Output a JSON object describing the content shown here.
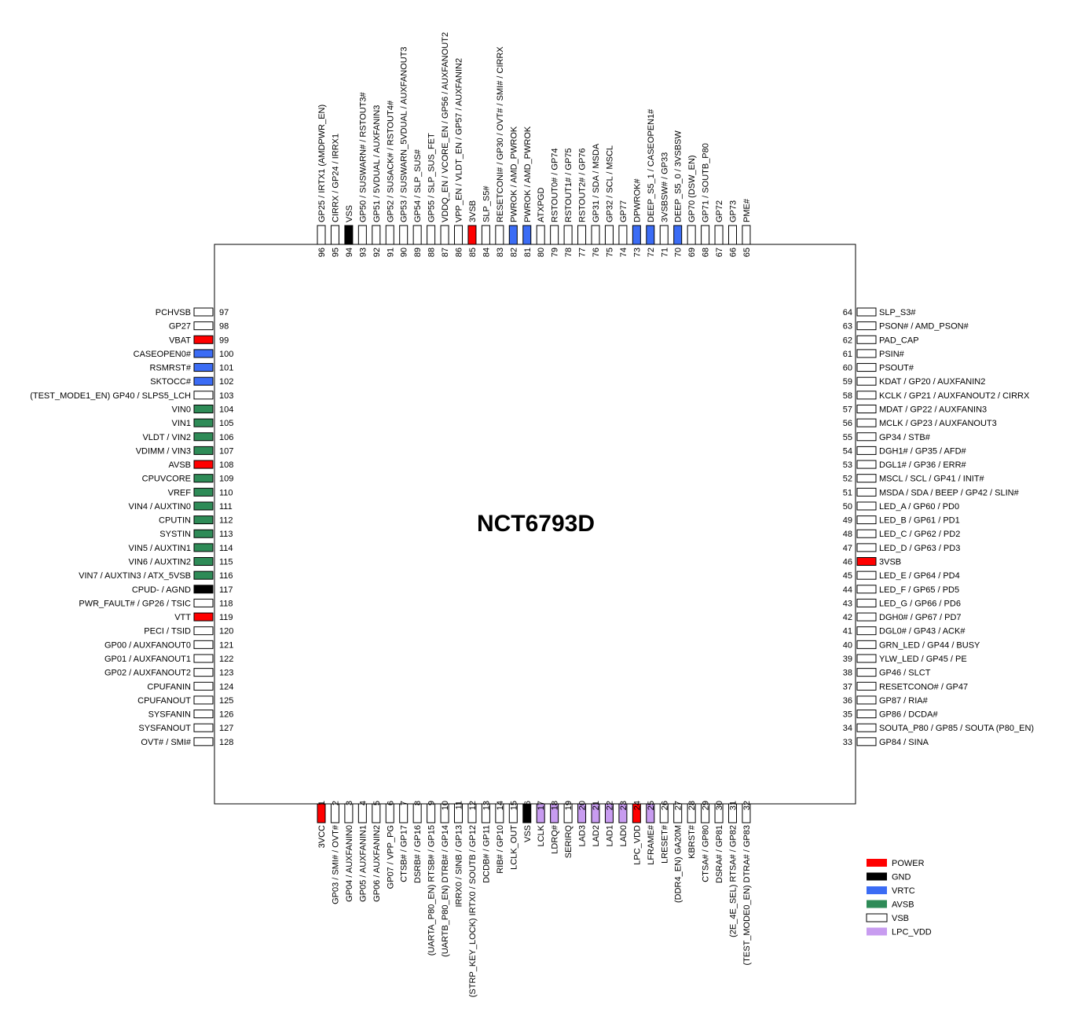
{
  "chip_name": "NCT6793D",
  "colors": {
    "POWER": "#ff0000",
    "GND": "#000000",
    "VRTC": "#3b6cf5",
    "AVSB": "#2e8b57",
    "VSB": "#ffffff",
    "LPC_VDD": "#c89cf0"
  },
  "legend": [
    {
      "type": "POWER",
      "label": "POWER"
    },
    {
      "type": "GND",
      "label": "GND"
    },
    {
      "type": "VRTC",
      "label": "VRTC"
    },
    {
      "type": "AVSB",
      "label": "AVSB"
    },
    {
      "type": "VSB",
      "label": "VSB"
    },
    {
      "type": "LPC_VDD",
      "label": "LPC_VDD"
    }
  ],
  "pins_bottom": [
    {
      "num": "1",
      "name": "3VCC",
      "type": "POWER"
    },
    {
      "num": "2",
      "name": "GP03 / SMI# / OVT#",
      "type": "VSB"
    },
    {
      "num": "3",
      "name": "GP04 / AUXFANIN0",
      "type": "VSB"
    },
    {
      "num": "4",
      "name": "GP05 / AUXFANIN1",
      "type": "VSB"
    },
    {
      "num": "5",
      "name": "GP06 / AUXFANIN2",
      "type": "VSB"
    },
    {
      "num": "6",
      "name": "GP07 / VPP_PG",
      "type": "VSB"
    },
    {
      "num": "7",
      "name": "CTSB# / GP17",
      "type": "VSB"
    },
    {
      "num": "8",
      "name": "DSRB# / GP16",
      "type": "VSB"
    },
    {
      "num": "9",
      "name": "(UARTA_P80_EN) RTSB# / GP15",
      "type": "VSB"
    },
    {
      "num": "10",
      "name": "(UARTB_P80_EN) DTRB# / GP14",
      "type": "VSB"
    },
    {
      "num": "11",
      "name": "IRRX0 / SINB / GP13",
      "type": "VSB"
    },
    {
      "num": "12",
      "name": "(STRP_KEY_LOCK) IRTX0 / SOUTB / GP12",
      "type": "VSB"
    },
    {
      "num": "13",
      "name": "DCDB# / GP11",
      "type": "VSB"
    },
    {
      "num": "14",
      "name": "RIB# / GP10",
      "type": "VSB"
    },
    {
      "num": "15",
      "name": "LCLK_OUT",
      "type": "VSB"
    },
    {
      "num": "16",
      "name": "VSS",
      "type": "GND"
    },
    {
      "num": "17",
      "name": "LCLK",
      "type": "LPC_VDD"
    },
    {
      "num": "18",
      "name": "LDRQ#",
      "type": "LPC_VDD"
    },
    {
      "num": "19",
      "name": "SERIRQ",
      "type": "VSB"
    },
    {
      "num": "20",
      "name": "LAD3",
      "type": "LPC_VDD"
    },
    {
      "num": "21",
      "name": "LAD2",
      "type": "LPC_VDD"
    },
    {
      "num": "22",
      "name": "LAD1",
      "type": "LPC_VDD"
    },
    {
      "num": "23",
      "name": "LAD0",
      "type": "LPC_VDD"
    },
    {
      "num": "24",
      "name": "LPC_VDD",
      "type": "POWER"
    },
    {
      "num": "25",
      "name": "LFRAME#",
      "type": "LPC_VDD"
    },
    {
      "num": "26",
      "name": "LRESET#",
      "type": "VSB"
    },
    {
      "num": "27",
      "name": "(DDR4_EN) GA20M",
      "type": "VSB"
    },
    {
      "num": "28",
      "name": "KBRST#",
      "type": "VSB"
    },
    {
      "num": "29",
      "name": "CTSA# / GP80",
      "type": "VSB"
    },
    {
      "num": "30",
      "name": "DSRA# / GP81",
      "type": "VSB"
    },
    {
      "num": "31",
      "name": "(2E_4E_SEL) RTSA# / GP82",
      "type": "VSB"
    },
    {
      "num": "32",
      "name": "(TEST_MODE0_EN) DTRA# / GP83",
      "type": "VSB"
    }
  ],
  "pins_right": [
    {
      "num": "33",
      "name": "GP84 / SINA",
      "type": "VSB"
    },
    {
      "num": "34",
      "name": "SOUTA_P80 / GP85 / SOUTA (P80_EN)",
      "type": "VSB"
    },
    {
      "num": "35",
      "name": "GP86 / DCDA#",
      "type": "VSB"
    },
    {
      "num": "36",
      "name": "GP87 / RIA#",
      "type": "VSB"
    },
    {
      "num": "37",
      "name": "RESETCONO# / GP47",
      "type": "VSB"
    },
    {
      "num": "38",
      "name": "GP46 / SLCT",
      "type": "VSB"
    },
    {
      "num": "39",
      "name": "YLW_LED / GP45 / PE",
      "type": "VSB"
    },
    {
      "num": "40",
      "name": "GRN_LED / GP44 / BUSY",
      "type": "VSB"
    },
    {
      "num": "41",
      "name": "DGL0# / GP43 / ACK#",
      "type": "VSB"
    },
    {
      "num": "42",
      "name": "DGH0# / GP67 / PD7",
      "type": "VSB"
    },
    {
      "num": "43",
      "name": "LED_G / GP66 / PD6",
      "type": "VSB"
    },
    {
      "num": "44",
      "name": "LED_F / GP65 / PD5",
      "type": "VSB"
    },
    {
      "num": "45",
      "name": "LED_E / GP64 / PD4",
      "type": "VSB"
    },
    {
      "num": "46",
      "name": "3VSB",
      "type": "POWER"
    },
    {
      "num": "47",
      "name": "LED_D / GP63 / PD3",
      "type": "VSB"
    },
    {
      "num": "48",
      "name": "LED_C / GP62 / PD2",
      "type": "VSB"
    },
    {
      "num": "49",
      "name": "LED_B / GP61 / PD1",
      "type": "VSB"
    },
    {
      "num": "50",
      "name": "LED_A / GP60 / PD0",
      "type": "VSB"
    },
    {
      "num": "51",
      "name": "MSDA / SDA / BEEP / GP42 / SLIN#",
      "type": "VSB"
    },
    {
      "num": "52",
      "name": "MSCL / SCL / GP41 / INIT#",
      "type": "VSB"
    },
    {
      "num": "53",
      "name": "DGL1# / GP36 / ERR#",
      "type": "VSB"
    },
    {
      "num": "54",
      "name": "DGH1# / GP35 / AFD#",
      "type": "VSB"
    },
    {
      "num": "55",
      "name": "GP34 / STB#",
      "type": "VSB"
    },
    {
      "num": "56",
      "name": "MCLK / GP23 / AUXFANOUT3",
      "type": "VSB"
    },
    {
      "num": "57",
      "name": "MDAT / GP22 / AUXFANIN3",
      "type": "VSB"
    },
    {
      "num": "58",
      "name": "KCLK / GP21 / AUXFANOUT2 / CIRRX",
      "type": "VSB"
    },
    {
      "num": "59",
      "name": "KDAT / GP20 / AUXFANIN2",
      "type": "VSB"
    },
    {
      "num": "60",
      "name": "PSOUT#",
      "type": "VSB"
    },
    {
      "num": "61",
      "name": "PSIN#",
      "type": "VSB"
    },
    {
      "num": "62",
      "name": "PAD_CAP",
      "type": "VSB"
    },
    {
      "num": "63",
      "name": "PSON# / AMD_PSON#",
      "type": "VSB"
    },
    {
      "num": "64",
      "name": "SLP_S3#",
      "type": "VSB"
    }
  ],
  "pins_top": [
    {
      "num": "65",
      "name": "PME#",
      "type": "VSB"
    },
    {
      "num": "66",
      "name": "GP73",
      "type": "VSB"
    },
    {
      "num": "67",
      "name": "GP72",
      "type": "VSB"
    },
    {
      "num": "68",
      "name": "GP71 / SOUTB_P80",
      "type": "VSB"
    },
    {
      "num": "69",
      "name": "GP70 (DSW_EN)",
      "type": "VSB"
    },
    {
      "num": "70",
      "name": "DEEP_S5_0 / 3VSBSW",
      "type": "VRTC"
    },
    {
      "num": "71",
      "name": "3VSBSW# / GP33",
      "type": "VSB"
    },
    {
      "num": "72",
      "name": "DEEP_S5_1 / CASEOPEN1#",
      "type": "VRTC"
    },
    {
      "num": "73",
      "name": "DPWROK#",
      "type": "VRTC"
    },
    {
      "num": "74",
      "name": "GP77",
      "type": "VSB"
    },
    {
      "num": "75",
      "name": "GP32 / SCL / MSCL",
      "type": "VSB"
    },
    {
      "num": "76",
      "name": "GP31 / SDA / MSDA",
      "type": "VSB"
    },
    {
      "num": "77",
      "name": "RSTOUT2# / GP76",
      "type": "VSB"
    },
    {
      "num": "78",
      "name": "RSTOUT1# / GP75",
      "type": "VSB"
    },
    {
      "num": "79",
      "name": "RSTOUT0# / GP74",
      "type": "VSB"
    },
    {
      "num": "80",
      "name": "ATXPGD",
      "type": "VSB"
    },
    {
      "num": "81",
      "name": "PWROK / AMD_PWROK",
      "type": "VRTC"
    },
    {
      "num": "82",
      "name": "PWROK / AMD_PWROK",
      "type": "VRTC"
    },
    {
      "num": "83",
      "name": "RESETCONI# / GP30 / OVT# / SMI# / CIRRX",
      "type": "VSB"
    },
    {
      "num": "84",
      "name": "SLP_S5#",
      "type": "VSB"
    },
    {
      "num": "85",
      "name": "3VSB",
      "type": "POWER"
    },
    {
      "num": "86",
      "name": "VPP_EN / VLDT_EN / GP57 / AUXFANIN2",
      "type": "VSB"
    },
    {
      "num": "87",
      "name": "VDDQ_EN / VCORE_EN / GP56 / AUXFANOUT2",
      "type": "VSB"
    },
    {
      "num": "88",
      "name": "GP55 / SLP_SUS_FET",
      "type": "VSB"
    },
    {
      "num": "89",
      "name": "GP54 / SLP_SUS#",
      "type": "VSB"
    },
    {
      "num": "90",
      "name": "GP53 / SUSWARN_5VDUAL / AUXFANOUT3",
      "type": "VSB"
    },
    {
      "num": "91",
      "name": "GP52 / SUSACK# / RSTOUT4#",
      "type": "VSB"
    },
    {
      "num": "92",
      "name": "GP51 / 5VDUAL / AUXFANIN3",
      "type": "VSB"
    },
    {
      "num": "93",
      "name": "GP50 / SUSWARN# / RSTOUT3#",
      "type": "VSB"
    },
    {
      "num": "94",
      "name": "VSS",
      "type": "GND"
    },
    {
      "num": "95",
      "name": "CIRRX / GP24 / IRRX1",
      "type": "VSB"
    },
    {
      "num": "96",
      "name": "GP25 / IRTX1 (AMDPWR_EN)",
      "type": "VSB"
    }
  ],
  "pins_left": [
    {
      "num": "97",
      "name": "PCHVSB",
      "type": "VSB"
    },
    {
      "num": "98",
      "name": "GP27",
      "type": "VSB"
    },
    {
      "num": "99",
      "name": "VBAT",
      "type": "POWER"
    },
    {
      "num": "100",
      "name": "CASEOPEN0#",
      "type": "VRTC"
    },
    {
      "num": "101",
      "name": "RSMRST#",
      "type": "VRTC"
    },
    {
      "num": "102",
      "name": "SKTOCC#",
      "type": "VRTC"
    },
    {
      "num": "103",
      "name": "(TEST_MODE1_EN) GP40 / SLPS5_LCH",
      "type": "VSB"
    },
    {
      "num": "104",
      "name": "VIN0",
      "type": "AVSB"
    },
    {
      "num": "105",
      "name": "VIN1",
      "type": "AVSB"
    },
    {
      "num": "106",
      "name": "VLDT / VIN2",
      "type": "AVSB"
    },
    {
      "num": "107",
      "name": "VDIMM / VIN3",
      "type": "AVSB"
    },
    {
      "num": "108",
      "name": "AVSB",
      "type": "POWER"
    },
    {
      "num": "109",
      "name": "CPUVCORE",
      "type": "AVSB"
    },
    {
      "num": "110",
      "name": "VREF",
      "type": "AVSB"
    },
    {
      "num": "111",
      "name": "VIN4 / AUXTIN0",
      "type": "AVSB"
    },
    {
      "num": "112",
      "name": "CPUTIN",
      "type": "AVSB"
    },
    {
      "num": "113",
      "name": "SYSTIN",
      "type": "AVSB"
    },
    {
      "num": "114",
      "name": "VIN5 / AUXTIN1",
      "type": "AVSB"
    },
    {
      "num": "115",
      "name": "VIN6 / AUXTIN2",
      "type": "AVSB"
    },
    {
      "num": "116",
      "name": "VIN7 / AUXTIN3 / ATX_5VSB",
      "type": "AVSB"
    },
    {
      "num": "117",
      "name": "CPUD- / AGND",
      "type": "GND"
    },
    {
      "num": "118",
      "name": "PWR_FAULT# / GP26 / TSIC",
      "type": "VSB"
    },
    {
      "num": "119",
      "name": "VTT",
      "type": "POWER"
    },
    {
      "num": "120",
      "name": "PECI / TSID",
      "type": "VSB"
    },
    {
      "num": "121",
      "name": "GP00 / AUXFANOUT0",
      "type": "VSB"
    },
    {
      "num": "122",
      "name": "GP01 / AUXFANOUT1",
      "type": "VSB"
    },
    {
      "num": "123",
      "name": "GP02 / AUXFANOUT2",
      "type": "VSB"
    },
    {
      "num": "124",
      "name": "CPUFANIN",
      "type": "VSB"
    },
    {
      "num": "125",
      "name": "CPUFANOUT",
      "type": "VSB"
    },
    {
      "num": "126",
      "name": "SYSFANIN",
      "type": "VSB"
    },
    {
      "num": "127",
      "name": "SYSFANOUT",
      "type": "VSB"
    },
    {
      "num": "128",
      "name": "OVT# / SMI#",
      "type": "VSB"
    }
  ]
}
